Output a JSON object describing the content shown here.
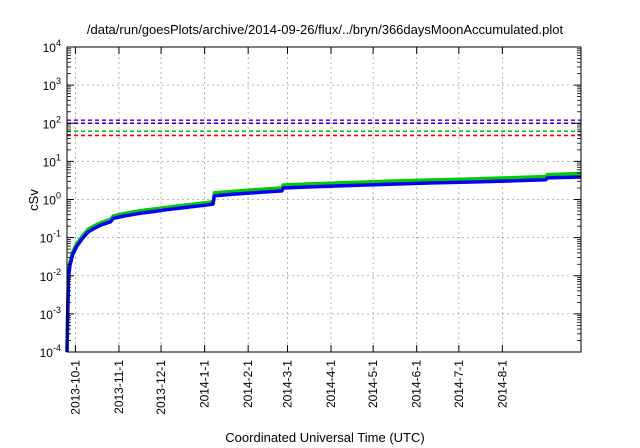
{
  "chart_data": {
    "type": "line",
    "title": "/data/run/goesPlots/archive/2014-09-26/flux/../bryn/366daysMoonAccumulated.plot",
    "xlabel": "Coordinated Universal Time (UTC)",
    "ylabel": "cSv",
    "y_scale": "log",
    "ylim": [
      0.0001,
      10000
    ],
    "y_ticks": [
      {
        "value": 0.0001,
        "base": "10",
        "exp": "-4"
      },
      {
        "value": 0.001,
        "base": "10",
        "exp": "-3"
      },
      {
        "value": 0.01,
        "base": "10",
        "exp": "-2"
      },
      {
        "value": 0.1,
        "base": "10",
        "exp": "-1"
      },
      {
        "value": 1,
        "base": "10",
        "exp": "0"
      },
      {
        "value": 10,
        "base": "10",
        "exp": "1"
      },
      {
        "value": 100,
        "base": "10",
        "exp": "2"
      },
      {
        "value": 1000,
        "base": "10",
        "exp": "3"
      },
      {
        "value": 10000,
        "base": "10",
        "exp": "4"
      }
    ],
    "xlim": [
      "2013-09-25",
      "2014-09-26"
    ],
    "x_ticks": [
      "2013-10-1",
      "2013-11-1",
      "2013-12-1",
      "2014-1-1",
      "2014-2-1",
      "2014-3-1",
      "2014-4-1",
      "2014-5-1",
      "2014-6-1",
      "2014-7-1",
      "2014-8-1"
    ],
    "grid": true,
    "thresholds": [
      {
        "value": 120,
        "color": "#9900cc"
      },
      {
        "value": 100,
        "color": "#0000ff"
      },
      {
        "value": 62,
        "color": "#00cc00"
      },
      {
        "value": 48,
        "color": "#ee0000"
      }
    ],
    "series": [
      {
        "color": "#00cc00",
        "points": [
          [
            "2013-09-25",
            0.0001
          ],
          [
            "2013-09-26",
            0.01
          ],
          [
            "2013-09-27",
            0.022
          ],
          [
            "2013-09-29",
            0.042
          ],
          [
            "2013-10-02",
            0.07
          ],
          [
            "2013-10-06",
            0.11
          ],
          [
            "2013-10-10",
            0.165
          ],
          [
            "2013-10-15",
            0.21
          ],
          [
            "2013-10-20",
            0.255
          ],
          [
            "2013-10-26",
            0.3
          ],
          [
            "2013-10-28",
            0.37
          ],
          [
            "2013-11-05",
            0.43
          ],
          [
            "2013-11-15",
            0.5
          ],
          [
            "2013-11-25",
            0.56
          ],
          [
            "2013-12-05",
            0.62
          ],
          [
            "2013-12-15",
            0.69
          ],
          [
            "2013-12-25",
            0.76
          ],
          [
            "2014-01-03",
            0.83
          ],
          [
            "2014-01-07",
            0.88
          ],
          [
            "2014-01-08",
            1.5
          ],
          [
            "2014-01-20",
            1.62
          ],
          [
            "2014-02-05",
            1.8
          ],
          [
            "2014-02-25",
            2.0
          ],
          [
            "2014-02-26",
            2.4
          ],
          [
            "2014-03-15",
            2.55
          ],
          [
            "2014-04-10",
            2.75
          ],
          [
            "2014-05-10",
            3.0
          ],
          [
            "2014-06-10",
            3.25
          ],
          [
            "2014-07-10",
            3.45
          ],
          [
            "2014-08-10",
            3.75
          ],
          [
            "2014-09-01",
            4.0
          ],
          [
            "2014-09-02",
            4.5
          ],
          [
            "2014-09-26",
            4.8
          ]
        ]
      },
      {
        "color": "#0000ff",
        "points": [
          [
            "2013-09-25",
            0.0001
          ],
          [
            "2013-09-26",
            0.008
          ],
          [
            "2013-09-27",
            0.018
          ],
          [
            "2013-09-29",
            0.036
          ],
          [
            "2013-10-02",
            0.06
          ],
          [
            "2013-10-06",
            0.095
          ],
          [
            "2013-10-10",
            0.14
          ],
          [
            "2013-10-15",
            0.18
          ],
          [
            "2013-10-20",
            0.22
          ],
          [
            "2013-10-26",
            0.26
          ],
          [
            "2013-10-28",
            0.32
          ],
          [
            "2013-11-05",
            0.37
          ],
          [
            "2013-11-15",
            0.43
          ],
          [
            "2013-11-25",
            0.48
          ],
          [
            "2013-12-05",
            0.54
          ],
          [
            "2013-12-15",
            0.6
          ],
          [
            "2013-12-25",
            0.66
          ],
          [
            "2014-01-03",
            0.72
          ],
          [
            "2014-01-07",
            0.76
          ],
          [
            "2014-01-08",
            1.25
          ],
          [
            "2014-01-20",
            1.36
          ],
          [
            "2014-02-05",
            1.5
          ],
          [
            "2014-02-25",
            1.68
          ],
          [
            "2014-02-26",
            2.0
          ],
          [
            "2014-03-15",
            2.12
          ],
          [
            "2014-04-10",
            2.3
          ],
          [
            "2014-05-10",
            2.5
          ],
          [
            "2014-06-10",
            2.7
          ],
          [
            "2014-07-10",
            2.88
          ],
          [
            "2014-08-10",
            3.1
          ],
          [
            "2014-09-01",
            3.3
          ],
          [
            "2014-09-02",
            3.7
          ],
          [
            "2014-09-26",
            3.9
          ]
        ]
      }
    ]
  }
}
